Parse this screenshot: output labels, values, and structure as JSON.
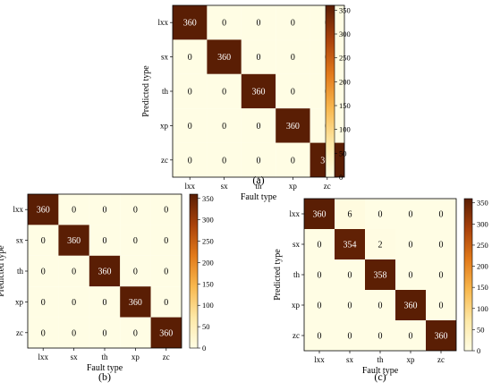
{
  "figure": {
    "colormap": [
      "#fffde4",
      "#fde8a6",
      "#f8b84e",
      "#e27a1a",
      "#a9420b",
      "#5a1e04"
    ],
    "cell_border": "#000000",
    "text_dark": "#000000",
    "text_light": "#ffffff"
  },
  "chart_data": [
    {
      "type": "heatmap",
      "panel_label": "(a)",
      "xlabel": "Fault  type",
      "ylabel": "Predicted  type",
      "x_categories": [
        "lxx",
        "sx",
        "th",
        "xp",
        "zc"
      ],
      "y_categories": [
        "lxx",
        "sx",
        "th",
        "xp",
        "zc"
      ],
      "values": [
        [
          360,
          0,
          0,
          0,
          0
        ],
        [
          0,
          360,
          0,
          0,
          0
        ],
        [
          0,
          0,
          360,
          0,
          0
        ],
        [
          0,
          0,
          0,
          360,
          0
        ],
        [
          0,
          0,
          0,
          0,
          360
        ]
      ],
      "colorbar": {
        "range": [
          0,
          360
        ],
        "ticks": [
          0,
          50,
          100,
          150,
          200,
          250,
          300,
          350
        ]
      }
    },
    {
      "type": "heatmap",
      "panel_label": "(b)",
      "xlabel": "Fault  type",
      "ylabel": "Predicted  type",
      "x_categories": [
        "lxx",
        "sx",
        "th",
        "xp",
        "zc"
      ],
      "y_categories": [
        "lxx",
        "sx",
        "th",
        "xp",
        "zc"
      ],
      "values": [
        [
          360,
          0,
          0,
          0,
          0
        ],
        [
          0,
          360,
          0,
          0,
          0
        ],
        [
          0,
          0,
          360,
          0,
          0
        ],
        [
          0,
          0,
          0,
          360,
          0
        ],
        [
          0,
          0,
          0,
          0,
          360
        ]
      ],
      "colorbar": {
        "range": [
          0,
          360
        ],
        "ticks": [
          0,
          50,
          100,
          150,
          200,
          250,
          300,
          350
        ]
      }
    },
    {
      "type": "heatmap",
      "panel_label": "(c)",
      "xlabel": "Fault  type",
      "ylabel": "Predicted  type",
      "x_categories": [
        "lxx",
        "sx",
        "th",
        "xp",
        "zc"
      ],
      "y_categories": [
        "lxx",
        "sx",
        "th",
        "xp",
        "zc"
      ],
      "values": [
        [
          360,
          6,
          0,
          0,
          0
        ],
        [
          0,
          354,
          2,
          0,
          0
        ],
        [
          0,
          0,
          358,
          0,
          0
        ],
        [
          0,
          0,
          0,
          360,
          0
        ],
        [
          0,
          0,
          0,
          0,
          360
        ]
      ],
      "colorbar": {
        "range": [
          0,
          360
        ],
        "ticks": [
          0,
          50,
          100,
          150,
          200,
          250,
          300,
          350
        ]
      }
    }
  ]
}
